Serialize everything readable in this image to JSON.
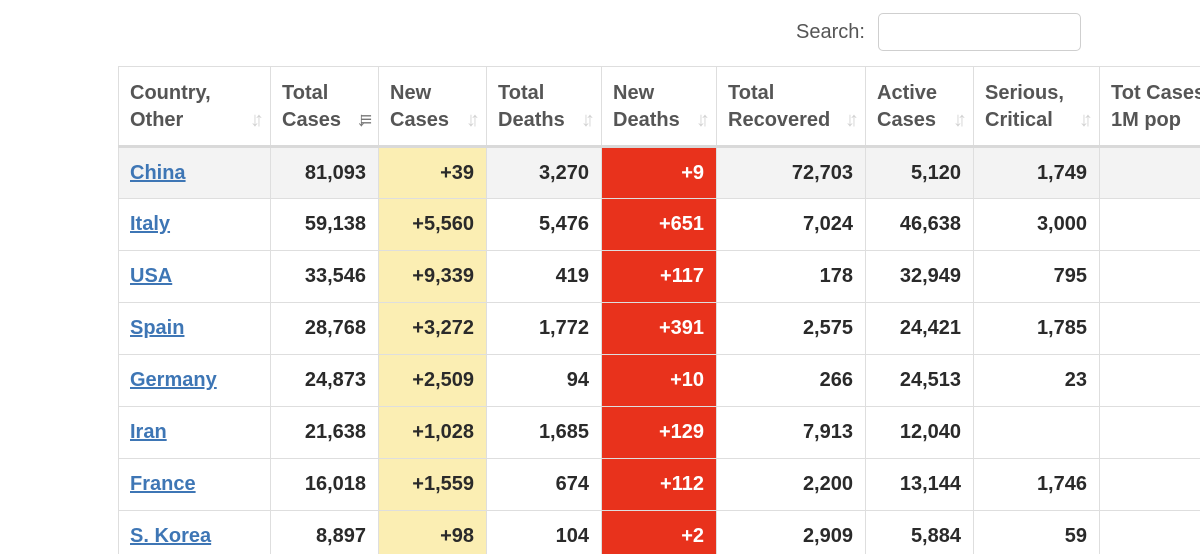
{
  "search": {
    "label": "Search:",
    "value": "",
    "placeholder": ""
  },
  "colors": {
    "new_cases_bg": "#fbeeb3",
    "new_deaths_bg": "#e8321c",
    "link": "#3e76b5",
    "highlight_row": "#f3f3f3"
  },
  "table": {
    "columns": [
      {
        "line1": "Country,",
        "line2": "Other",
        "sort_icon": "sort-both-icon"
      },
      {
        "line1": "Total",
        "line2": "Cases",
        "sort_icon": "sort-descending-icon"
      },
      {
        "line1": "New",
        "line2": "Cases",
        "sort_icon": "sort-both-icon"
      },
      {
        "line1": "Total",
        "line2": "Deaths",
        "sort_icon": "sort-both-icon"
      },
      {
        "line1": "New",
        "line2": "Deaths",
        "sort_icon": "sort-both-icon"
      },
      {
        "line1": "Total",
        "line2": "Recovered",
        "sort_icon": "sort-both-icon"
      },
      {
        "line1": "Active",
        "line2": "Cases",
        "sort_icon": "sort-both-icon"
      },
      {
        "line1": "Serious,",
        "line2": "Critical",
        "sort_icon": "sort-both-icon"
      },
      {
        "line1": "Tot Cases/",
        "line2": "1M pop",
        "sort_icon": ""
      }
    ],
    "rows": [
      {
        "country": "China",
        "total_cases": "81,093",
        "new_cases": "+39",
        "total_deaths": "3,270",
        "new_deaths": "+9",
        "total_recovered": "72,703",
        "active_cases": "5,120",
        "serious_critical": "1,749",
        "tot_cases_1m": ""
      },
      {
        "country": "Italy",
        "total_cases": "59,138",
        "new_cases": "+5,560",
        "total_deaths": "5,476",
        "new_deaths": "+651",
        "total_recovered": "7,024",
        "active_cases": "46,638",
        "serious_critical": "3,000",
        "tot_cases_1m": ""
      },
      {
        "country": "USA",
        "total_cases": "33,546",
        "new_cases": "+9,339",
        "total_deaths": "419",
        "new_deaths": "+117",
        "total_recovered": "178",
        "active_cases": "32,949",
        "serious_critical": "795",
        "tot_cases_1m": ""
      },
      {
        "country": "Spain",
        "total_cases": "28,768",
        "new_cases": "+3,272",
        "total_deaths": "1,772",
        "new_deaths": "+391",
        "total_recovered": "2,575",
        "active_cases": "24,421",
        "serious_critical": "1,785",
        "tot_cases_1m": ""
      },
      {
        "country": "Germany",
        "total_cases": "24,873",
        "new_cases": "+2,509",
        "total_deaths": "94",
        "new_deaths": "+10",
        "total_recovered": "266",
        "active_cases": "24,513",
        "serious_critical": "23",
        "tot_cases_1m": ""
      },
      {
        "country": "Iran",
        "total_cases": "21,638",
        "new_cases": "+1,028",
        "total_deaths": "1,685",
        "new_deaths": "+129",
        "total_recovered": "7,913",
        "active_cases": "12,040",
        "serious_critical": "",
        "tot_cases_1m": ""
      },
      {
        "country": "France",
        "total_cases": "16,018",
        "new_cases": "+1,559",
        "total_deaths": "674",
        "new_deaths": "+112",
        "total_recovered": "2,200",
        "active_cases": "13,144",
        "serious_critical": "1,746",
        "tot_cases_1m": ""
      },
      {
        "country": "S. Korea",
        "total_cases": "8,897",
        "new_cases": "+98",
        "total_deaths": "104",
        "new_deaths": "+2",
        "total_recovered": "2,909",
        "active_cases": "5,884",
        "serious_critical": "59",
        "tot_cases_1m": ""
      }
    ]
  }
}
